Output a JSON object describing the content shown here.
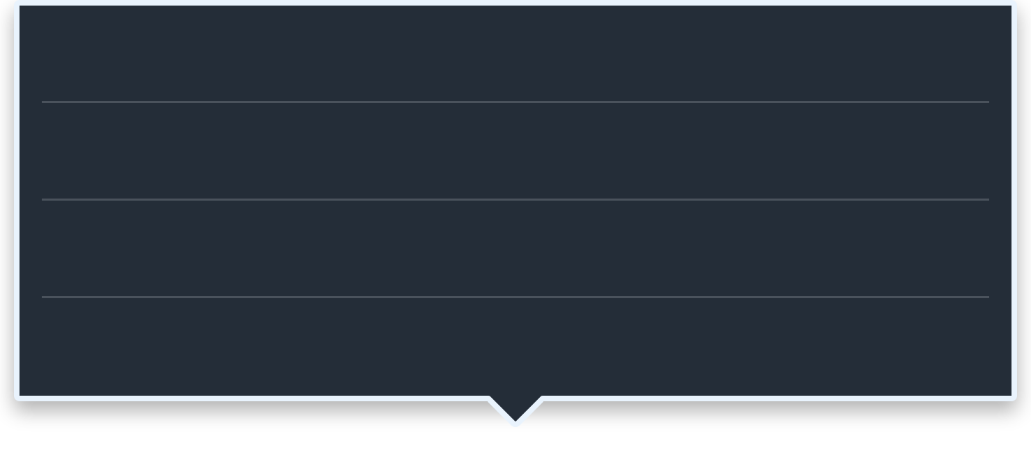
{
  "popover": {
    "rows": [
      {
        "label": ""
      },
      {
        "label": ""
      },
      {
        "label": ""
      },
      {
        "label": ""
      }
    ]
  },
  "colors": {
    "panel_background": "#242d38",
    "panel_border": "#e9f3fd",
    "row_divider": "#4a525c",
    "page_background": "#ffffff"
  }
}
